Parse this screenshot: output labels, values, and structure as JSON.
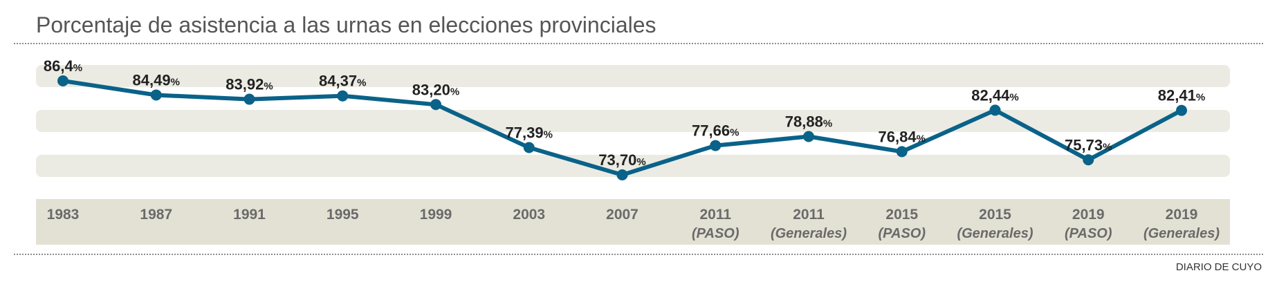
{
  "header": {
    "title": "Porcentaje de asistencia a las urnas en elecciones provinciales"
  },
  "footer": {
    "credit": "DIARIO DE CUYO"
  },
  "colors": {
    "line": "#0a6288",
    "band": "#ebebe3",
    "axis_band": "#e3e1d4"
  },
  "chart_data": {
    "type": "line",
    "title": "Porcentaje de asistencia a las urnas en elecciones provinciales",
    "grid": true,
    "ylim": [
      72,
      88
    ],
    "categories": [
      {
        "year": "1983",
        "sub": ""
      },
      {
        "year": "1987",
        "sub": ""
      },
      {
        "year": "1991",
        "sub": ""
      },
      {
        "year": "1995",
        "sub": ""
      },
      {
        "year": "1999",
        "sub": ""
      },
      {
        "year": "2003",
        "sub": ""
      },
      {
        "year": "2007",
        "sub": ""
      },
      {
        "year": "2011",
        "sub": "(PASO)"
      },
      {
        "year": "2011",
        "sub": "(Generales)"
      },
      {
        "year": "2015",
        "sub": "(PASO)"
      },
      {
        "year": "2015",
        "sub": "(Generales)"
      },
      {
        "year": "2019",
        "sub": "(PASO)"
      },
      {
        "year": "2019",
        "sub": "(Generales)"
      }
    ],
    "values": [
      86.4,
      84.49,
      83.92,
      84.37,
      83.2,
      77.39,
      73.7,
      77.66,
      78.88,
      76.84,
      82.44,
      75.73,
      82.41
    ],
    "labels": [
      "86,4",
      "84,49",
      "83,92",
      "84,37",
      "83,20",
      "77,39",
      "73,70",
      "77,66",
      "78,88",
      "76,84",
      "82,44",
      "75,73",
      "82,41"
    ],
    "label_suffix": "%"
  }
}
